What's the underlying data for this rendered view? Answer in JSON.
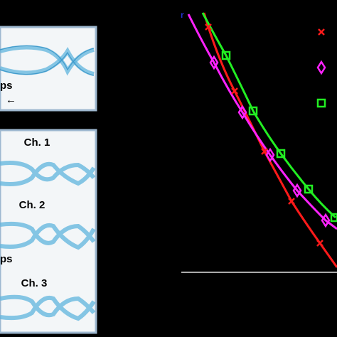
{
  "panels": {
    "top": {
      "unit": "ps",
      "arrow": "←"
    },
    "bottom": {
      "channels": [
        "Ch. 1",
        "Ch. 2",
        "Ch. 3"
      ],
      "unit": "ps"
    }
  }
}
